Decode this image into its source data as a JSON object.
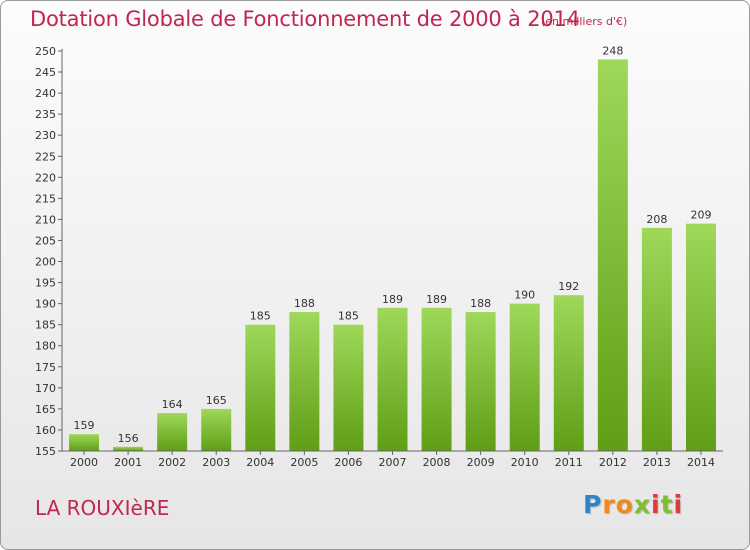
{
  "header": {
    "title": "Dotation Globale de Fonctionnement de 2000 à 2014",
    "unit": "(en milliers d'€)"
  },
  "footer": {
    "commune": "LA ROUXIèRE",
    "logo": "Proxiti"
  },
  "colors": {
    "title": "#c0264f",
    "bar_top": "#9fd85a",
    "bar_bottom": "#5f9e15"
  },
  "chart_data": {
    "type": "bar",
    "title": "Dotation Globale de Fonctionnement de 2000 à 2014",
    "subtitle": "(en milliers d'€)",
    "xlabel": "",
    "ylabel": "",
    "categories": [
      "2000",
      "2001",
      "2002",
      "2003",
      "2004",
      "2005",
      "2006",
      "2007",
      "2008",
      "2009",
      "2010",
      "2011",
      "2012",
      "2013",
      "2014"
    ],
    "values": [
      159,
      156,
      164,
      165,
      185,
      188,
      185,
      189,
      189,
      188,
      190,
      192,
      248,
      208,
      209
    ],
    "ylim": [
      155,
      250
    ],
    "yticks": [
      155,
      160,
      165,
      170,
      175,
      180,
      185,
      190,
      195,
      200,
      205,
      210,
      215,
      220,
      225,
      230,
      235,
      240,
      245,
      250
    ],
    "grid": false,
    "data_labels": true
  }
}
